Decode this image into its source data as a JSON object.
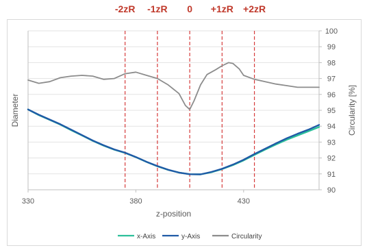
{
  "chart_data": {
    "type": "line",
    "title": "",
    "xlabel": "z-position",
    "ylabel_left": "Diameter",
    "ylabel_right": "Circularity [%]",
    "xlim": [
      330,
      465
    ],
    "x_ticks": [
      330,
      380,
      430
    ],
    "y_right_lim": [
      90,
      100
    ],
    "y_right_ticks": [
      90,
      91,
      92,
      93,
      94,
      95,
      96,
      97,
      98,
      99,
      100
    ],
    "y_left_ticks_shown": false,
    "gridlines": "horizontal",
    "legend_position": "bottom",
    "markers": [
      {
        "label": "-2zR",
        "x": 375
      },
      {
        "label": "-1zR",
        "x": 390
      },
      {
        "label": "0",
        "x": 405
      },
      {
        "label": "+1zR",
        "x": 420
      },
      {
        "label": "+2zR",
        "x": 435
      }
    ],
    "series": [
      {
        "name": "x-Axis",
        "color": "#2cbf9a",
        "axis": "right",
        "x": [
          330,
          335,
          340,
          345,
          350,
          355,
          360,
          365,
          370,
          375,
          380,
          385,
          390,
          395,
          400,
          405,
          410,
          415,
          420,
          425,
          430,
          435,
          440,
          445,
          450,
          455,
          460,
          465
        ],
        "y": [
          95.05,
          94.7,
          94.4,
          94.1,
          93.75,
          93.42,
          93.08,
          92.78,
          92.52,
          92.32,
          92.05,
          91.75,
          91.48,
          91.25,
          91.08,
          90.98,
          90.97,
          91.1,
          91.3,
          91.55,
          91.85,
          92.2,
          92.53,
          92.85,
          93.15,
          93.42,
          93.68,
          93.95
        ]
      },
      {
        "name": "y-Axis",
        "color": "#1f5aa6",
        "axis": "right",
        "x": [
          330,
          335,
          340,
          345,
          350,
          355,
          360,
          365,
          370,
          375,
          380,
          385,
          390,
          395,
          400,
          405,
          410,
          415,
          420,
          425,
          430,
          435,
          440,
          445,
          450,
          455,
          460,
          465
        ],
        "y": [
          95.05,
          94.72,
          94.42,
          94.12,
          93.78,
          93.44,
          93.1,
          92.8,
          92.54,
          92.33,
          92.06,
          91.76,
          91.49,
          91.26,
          91.08,
          90.98,
          90.97,
          91.12,
          91.32,
          91.58,
          91.89,
          92.25,
          92.58,
          92.92,
          93.24,
          93.52,
          93.78,
          94.08
        ]
      },
      {
        "name": "Circularity",
        "color": "#8c8c8c",
        "axis": "right",
        "x": [
          330,
          335,
          340,
          345,
          350,
          355,
          360,
          365,
          370,
          375,
          380,
          385,
          390,
          395,
          400,
          403,
          405,
          407,
          410,
          413,
          417,
          420,
          423,
          425,
          428,
          430,
          435,
          440,
          445,
          450,
          455,
          460,
          465
        ],
        "y": [
          96.9,
          96.7,
          96.8,
          97.05,
          97.15,
          97.2,
          97.15,
          96.95,
          97.0,
          97.3,
          97.4,
          97.2,
          97.0,
          96.6,
          96.05,
          95.3,
          95.05,
          95.6,
          96.6,
          97.25,
          97.55,
          97.8,
          98.0,
          97.95,
          97.6,
          97.2,
          96.95,
          96.8,
          96.65,
          96.55,
          96.45,
          96.45,
          96.45
        ]
      }
    ]
  }
}
